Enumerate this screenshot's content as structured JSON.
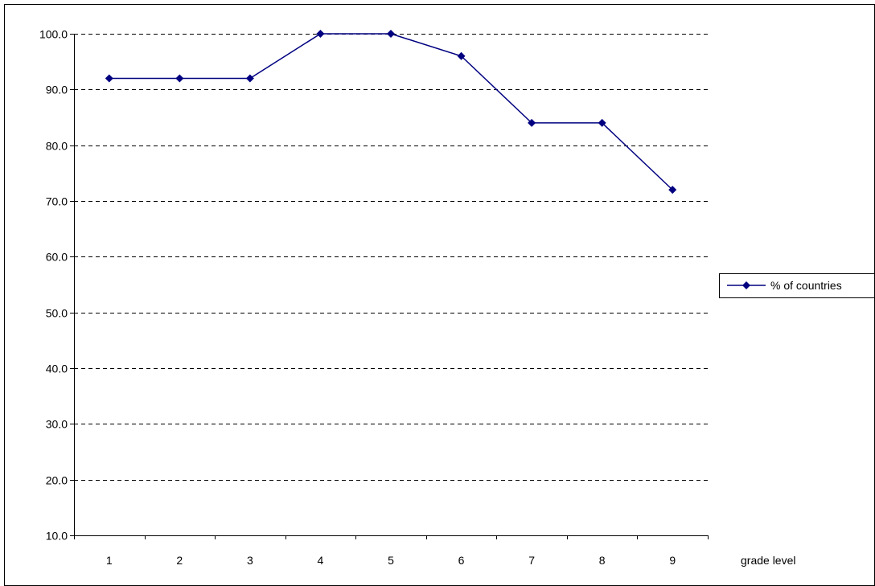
{
  "chart_data": {
    "type": "line",
    "title": "",
    "xlabel": "grade level",
    "ylabel": "",
    "categories": [
      "1",
      "2",
      "3",
      "4",
      "5",
      "6",
      "7",
      "8",
      "9"
    ],
    "series": [
      {
        "name": "% of countries",
        "values": [
          92.0,
          92.0,
          92.0,
          100.0,
          100.0,
          96.0,
          84.0,
          84.0,
          72.0
        ],
        "color": "#000080",
        "marker": "diamond"
      }
    ],
    "ylim": [
      10,
      100
    ],
    "y_ticks": [
      "10.0",
      "20.0",
      "30.0",
      "40.0",
      "50.0",
      "60.0",
      "70.0",
      "80.0",
      "90.0",
      "100.0"
    ],
    "grid": "horizontal-dashed",
    "legend_position": "right"
  }
}
